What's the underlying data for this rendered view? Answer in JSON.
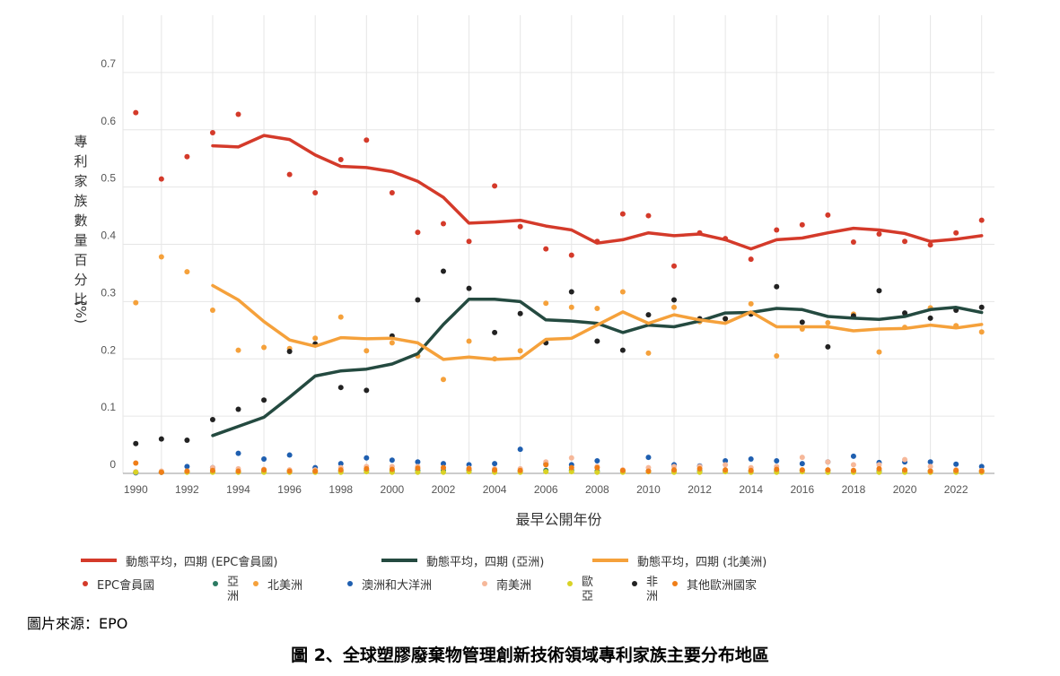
{
  "chart_data": {
    "type": "line",
    "ylabel_chars": [
      "專",
      "利",
      "家",
      "族",
      "數",
      "量",
      "百",
      "分",
      "比",
      "(%)"
    ],
    "xlabel": "最早公開年份",
    "ylim": [
      0,
      0.8
    ],
    "y_ticks": [
      "0",
      "0.1",
      "0.2",
      "0.3",
      "0.4",
      "0.5",
      "0.6",
      "0.7"
    ],
    "x_ticks": [
      "1990",
      "1992",
      "1994",
      "1996",
      "1998",
      "2000",
      "2002",
      "2004",
      "2006",
      "2008",
      "2010",
      "2012",
      "2014",
      "2016",
      "2018",
      "2020",
      "2022"
    ],
    "grid": true,
    "lines": [
      {
        "name": "動態平均，四期 (EPC會員國)",
        "color": "#d43a2a",
        "x": [
          1993,
          1994,
          1995,
          1996,
          1997,
          1998,
          1999,
          2000,
          2001,
          2002,
          2003,
          2004,
          2005,
          2006,
          2007,
          2008,
          2009,
          2010,
          2011,
          2012,
          2013,
          2014,
          2015,
          2016,
          2017,
          2018,
          2019,
          2020,
          2021,
          2022,
          2023
        ],
        "y": [
          0.572,
          0.57,
          0.59,
          0.583,
          0.556,
          0.536,
          0.534,
          0.527,
          0.51,
          0.482,
          0.437,
          0.439,
          0.442,
          0.432,
          0.425,
          0.402,
          0.408,
          0.42,
          0.415,
          0.418,
          0.408,
          0.392,
          0.408,
          0.411,
          0.42,
          0.428,
          0.425,
          0.419,
          0.405,
          0.409,
          0.415
        ]
      },
      {
        "name": "動態平均，四期 (亞洲)",
        "color": "#244a40",
        "x": [
          1993,
          1994,
          1995,
          1996,
          1997,
          1998,
          1999,
          2000,
          2001,
          2002,
          2003,
          2004,
          2005,
          2006,
          2007,
          2008,
          2009,
          2010,
          2011,
          2012,
          2013,
          2014,
          2015,
          2016,
          2017,
          2018,
          2019,
          2020,
          2021,
          2022,
          2023
        ],
        "y": [
          0.066,
          0.082,
          0.098,
          0.133,
          0.17,
          0.179,
          0.182,
          0.191,
          0.209,
          0.26,
          0.304,
          0.304,
          0.3,
          0.268,
          0.266,
          0.262,
          0.246,
          0.259,
          0.256,
          0.266,
          0.28,
          0.281,
          0.288,
          0.286,
          0.274,
          0.271,
          0.269,
          0.274,
          0.286,
          0.29,
          0.281
        ]
      },
      {
        "name": "動態平均，四期 (北美洲)",
        "color": "#f5a13b",
        "x": [
          1993,
          1994,
          1995,
          1996,
          1997,
          1998,
          1999,
          2000,
          2001,
          2002,
          2003,
          2004,
          2005,
          2006,
          2007,
          2008,
          2009,
          2010,
          2011,
          2012,
          2013,
          2014,
          2015,
          2016,
          2017,
          2018,
          2019,
          2020,
          2021,
          2022,
          2023
        ],
        "y": [
          0.328,
          0.303,
          0.265,
          0.233,
          0.222,
          0.237,
          0.235,
          0.236,
          0.228,
          0.199,
          0.203,
          0.199,
          0.201,
          0.234,
          0.236,
          0.259,
          0.282,
          0.262,
          0.277,
          0.268,
          0.262,
          0.282,
          0.256,
          0.256,
          0.256,
          0.249,
          0.252,
          0.253,
          0.259,
          0.254,
          0.26
        ]
      }
    ],
    "points": [
      {
        "name": "EPC會員國",
        "color": "#d43a2a",
        "x": [
          1990,
          1991,
          1992,
          1993,
          1994,
          1996,
          1997,
          1998,
          1999,
          2000,
          2001,
          2002,
          2003,
          2004,
          2005,
          2006,
          2007,
          2008,
          2009,
          2010,
          2011,
          2012,
          2013,
          2014,
          2015,
          2016,
          2017,
          2018,
          2019,
          2020,
          2021,
          2022,
          2023
        ],
        "y": [
          0.63,
          0.514,
          0.553,
          0.595,
          0.627,
          0.522,
          0.49,
          0.548,
          0.582,
          0.49,
          0.421,
          0.436,
          0.405,
          0.502,
          0.431,
          0.392,
          0.381,
          0.405,
          0.453,
          0.45,
          0.362,
          0.42,
          0.41,
          0.374,
          0.425,
          0.434,
          0.451,
          0.404,
          0.418,
          0.405,
          0.399,
          0.42,
          0.442
        ]
      },
      {
        "name": "亞洲",
        "color": "#2b7a62",
        "x": [
          1990,
          1991,
          1992,
          1993,
          1994,
          1995,
          1996,
          1997,
          1998,
          1999,
          2000,
          2001,
          2002,
          2003,
          2004,
          2005,
          2006,
          2007,
          2008,
          2009,
          2010,
          2011,
          2012,
          2013,
          2014,
          2015,
          2016,
          2017,
          2018,
          2019,
          2020,
          2021,
          2022,
          2023
        ],
        "y": [
          0.002,
          0.002,
          0.003,
          0.003,
          0.003,
          0.003,
          0.004,
          0.004,
          0.004,
          0.005,
          0.004,
          0.005,
          0.005,
          0.005,
          0.004,
          0.004,
          0.005,
          0.005,
          0.004,
          0.004,
          0.004,
          0.004,
          0.004,
          0.004,
          0.004,
          0.004,
          0.005,
          0.005,
          0.004,
          0.004,
          0.004,
          0.004,
          0.004,
          0.004
        ]
      },
      {
        "name": "北美洲",
        "color": "#f5a13b",
        "x": [
          1990,
          1991,
          1992,
          1993,
          1994,
          1995,
          1996,
          1997,
          1998,
          1999,
          2000,
          2001,
          2002,
          2003,
          2004,
          2005,
          2006,
          2007,
          2008,
          2009,
          2010,
          2011,
          2012,
          2013,
          2014,
          2015,
          2016,
          2017,
          2018,
          2019,
          2020,
          2021,
          2022,
          2023
        ],
        "y": [
          0.298,
          0.378,
          0.352,
          0.285,
          0.215,
          0.22,
          0.218,
          0.236,
          0.273,
          0.214,
          0.228,
          0.205,
          0.164,
          0.231,
          0.2,
          0.214,
          0.297,
          0.29,
          0.288,
          0.317,
          0.21,
          0.29,
          0.265,
          0.27,
          0.296,
          0.205,
          0.252,
          0.263,
          0.278,
          0.212,
          0.255,
          0.289,
          0.258,
          0.247
        ]
      },
      {
        "name": "澳洲和大洋洲",
        "color": "#1f5fb0",
        "x": [
          1990,
          1991,
          1992,
          1993,
          1994,
          1995,
          1996,
          1997,
          1998,
          1999,
          2000,
          2001,
          2002,
          2003,
          2004,
          2005,
          2006,
          2007,
          2008,
          2009,
          2010,
          2011,
          2012,
          2013,
          2014,
          2015,
          2016,
          2017,
          2018,
          2019,
          2020,
          2021,
          2022,
          2023
        ],
        "y": [
          0.001,
          0.002,
          0.012,
          0.01,
          0.035,
          0.025,
          0.032,
          0.01,
          0.017,
          0.027,
          0.023,
          0.02,
          0.017,
          0.015,
          0.017,
          0.042,
          0.017,
          0.015,
          0.022,
          0.005,
          0.028,
          0.015,
          0.013,
          0.022,
          0.025,
          0.022,
          0.017,
          0.02,
          0.03,
          0.019,
          0.02,
          0.02,
          0.016,
          0.012
        ]
      },
      {
        "name": "南美洲",
        "color": "#f6b89a",
        "x": [
          1990,
          1991,
          1992,
          1993,
          1994,
          1995,
          1996,
          1997,
          1998,
          1999,
          2000,
          2001,
          2002,
          2003,
          2004,
          2005,
          2006,
          2007,
          2008,
          2009,
          2010,
          2011,
          2012,
          2013,
          2014,
          2015,
          2016,
          2017,
          2018,
          2019,
          2020,
          2021,
          2022,
          2023
        ],
        "y": [
          0.003,
          0.004,
          0.004,
          0.01,
          0.008,
          0.007,
          0.006,
          0.006,
          0.01,
          0.012,
          0.012,
          0.012,
          0.01,
          0.009,
          0.008,
          0.008,
          0.02,
          0.027,
          0.012,
          0.006,
          0.01,
          0.012,
          0.012,
          0.015,
          0.01,
          0.012,
          0.028,
          0.02,
          0.015,
          0.015,
          0.024,
          0.012,
          0.006,
          0.005
        ]
      },
      {
        "name": "歐亞",
        "color": "#d9d226",
        "x": [
          1990,
          1991,
          1992,
          1993,
          1994,
          1995,
          1996,
          1997,
          1998,
          1999,
          2000,
          2001,
          2002,
          2003,
          2004,
          2005,
          2006,
          2007,
          2008,
          2009,
          2010,
          2011,
          2012,
          2013,
          2014,
          2015,
          2016,
          2017,
          2018,
          2019,
          2020,
          2021,
          2022,
          2023
        ],
        "y": [
          0.002,
          0.002,
          0.002,
          0.002,
          0.002,
          0.002,
          0.002,
          0.002,
          0.002,
          0.003,
          0.002,
          0.002,
          0.002,
          0.003,
          0.002,
          0.002,
          0.003,
          0.003,
          0.002,
          0.002,
          0.003,
          0.002,
          0.002,
          0.003,
          0.002,
          0.002,
          0.003,
          0.002,
          0.002,
          0.002,
          0.002,
          0.002,
          0.002,
          0.002
        ]
      },
      {
        "name": "非洲",
        "color": "#222222",
        "x": [
          1990,
          1991,
          1992,
          1993,
          1994,
          1995,
          1996,
          1997,
          1998,
          1999,
          2000,
          2001,
          2002,
          2003,
          2004,
          2005,
          2006,
          2007,
          2008,
          2009,
          2010,
          2011,
          2012,
          2013,
          2014,
          2015,
          2016,
          2017,
          2018,
          2019,
          2020,
          2021,
          2022,
          2023
        ],
        "y": [
          0.052,
          0.06,
          0.058,
          0.094,
          0.112,
          0.128,
          0.213,
          0.226,
          0.15,
          0.145,
          0.24,
          0.303,
          0.353,
          0.323,
          0.246,
          0.279,
          0.228,
          0.317,
          0.231,
          0.215,
          0.277,
          0.303,
          0.27,
          0.27,
          0.278,
          0.326,
          0.264,
          0.221,
          0.275,
          0.319,
          0.28,
          0.271,
          0.285,
          0.29
        ]
      },
      {
        "name": "其他歐洲國家",
        "color": "#f07e18",
        "x": [
          1990,
          1991,
          1992,
          1993,
          1994,
          1995,
          1996,
          1997,
          1998,
          1999,
          2000,
          2001,
          2002,
          2003,
          2004,
          2005,
          2006,
          2007,
          2008,
          2009,
          2010,
          2011,
          2012,
          2013,
          2014,
          2015,
          2016,
          2017,
          2018,
          2019,
          2020,
          2021,
          2022,
          2023
        ],
        "y": [
          0.018,
          0.002,
          0.004,
          0.005,
          0.004,
          0.006,
          0.004,
          0.004,
          0.006,
          0.008,
          0.007,
          0.009,
          0.01,
          0.008,
          0.006,
          0.005,
          0.015,
          0.01,
          0.01,
          0.005,
          0.004,
          0.006,
          0.008,
          0.006,
          0.005,
          0.007,
          0.006,
          0.006,
          0.005,
          0.008,
          0.006,
          0.004,
          0.005,
          0.004
        ]
      }
    ]
  },
  "legend": {
    "line_epc": "動態平均，四期 (EPC會員國)",
    "line_asia": "動態平均，四期 (亞洲)",
    "line_na": "動態平均，四期 (北美洲)",
    "dot_epc": "EPC會員國",
    "dot_asia": "亞洲",
    "dot_na": "北美洲",
    "dot_oceania": "澳洲和大洋洲",
    "dot_sa": "南美洲",
    "dot_eurasia": "歐亞",
    "dot_africa": "非洲",
    "dot_other_eu": "其他歐洲國家",
    "colors": {
      "epc": "#d43a2a",
      "asia_line": "#244a40",
      "asia_dot": "#2b7a62",
      "na": "#f5a13b",
      "oceania": "#1f5fb0",
      "sa": "#f6b89a",
      "eurasia": "#d9d226",
      "africa": "#222222",
      "other_eu": "#f07e18"
    }
  },
  "source_text": "圖片來源：EPO",
  "caption": "圖 2、全球塑膠廢棄物管理創新技術領域專利家族主要分布地區"
}
